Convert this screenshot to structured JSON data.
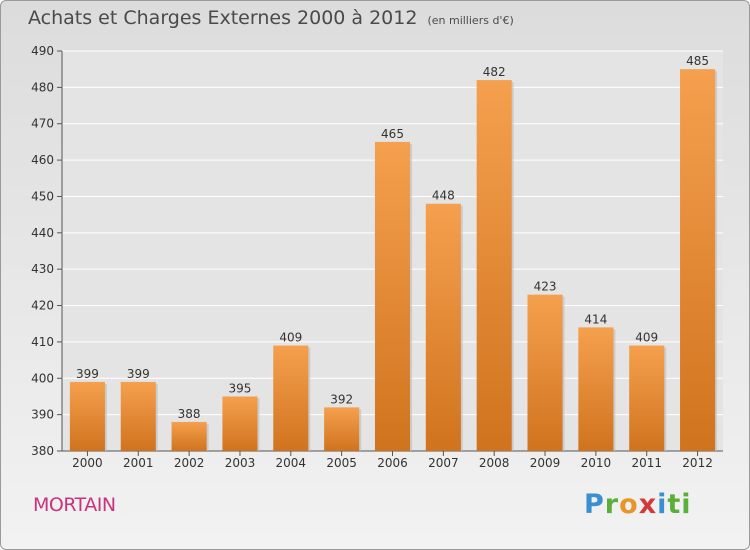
{
  "header": {
    "title": "Achats et Charges Externes 2000 à 2012",
    "subtitle": "(en milliers d'€)"
  },
  "footer": {
    "city": "MORTAIN",
    "logo_text": "Proxiti",
    "logo_parts": [
      "P",
      "r",
      "o",
      "x",
      "i",
      "ti"
    ]
  },
  "colors": {
    "bar_top": "#f5a04e",
    "bar_bottom": "#d0731e",
    "grid": "#ffffff",
    "city_text": "#c8347c"
  },
  "chart_data": {
    "type": "bar",
    "title": "Achats et Charges Externes 2000 à 2012",
    "subtitle": "(en milliers d'€)",
    "categories": [
      "2000",
      "2001",
      "2002",
      "2003",
      "2004",
      "2005",
      "2006",
      "2007",
      "2008",
      "2009",
      "2010",
      "2011",
      "2012"
    ],
    "values": [
      399,
      399,
      388,
      395,
      409,
      392,
      465,
      448,
      482,
      423,
      414,
      409,
      485
    ],
    "ylim": [
      380,
      490
    ],
    "yticks": [
      380,
      390,
      400,
      410,
      420,
      430,
      440,
      450,
      460,
      470,
      480,
      490
    ],
    "grid": true,
    "xlabel": "",
    "ylabel": ""
  }
}
